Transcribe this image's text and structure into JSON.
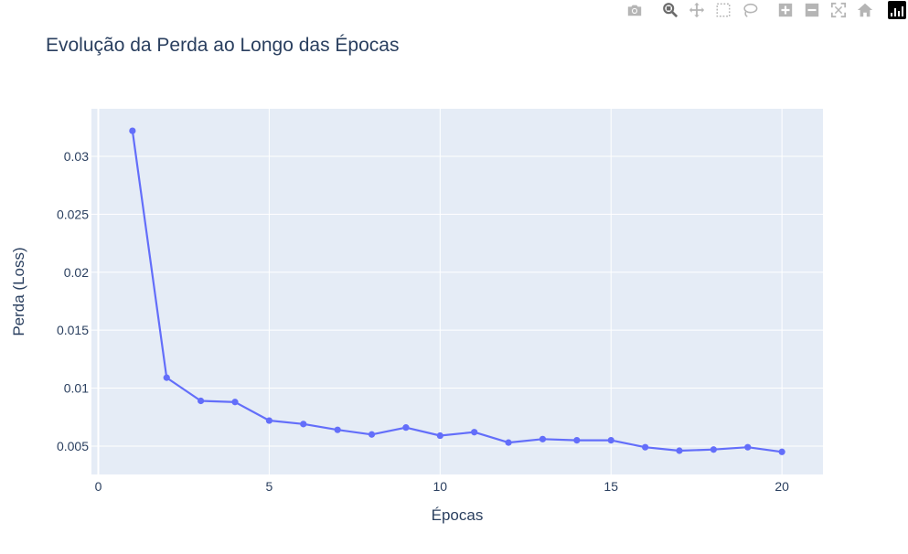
{
  "modebar": {
    "buttons": [
      "camera-icon",
      "zoom-icon",
      "pan-icon",
      "box-select-icon",
      "lasso-select-icon",
      "zoom-in-icon",
      "zoom-out-icon",
      "autoscale-icon",
      "reset-axes-icon",
      "plotly-logo-icon"
    ],
    "active": "zoom-icon"
  },
  "chart_data": {
    "type": "line",
    "title": "Evolução da Perda ao Longo das Épocas",
    "xlabel": "Épocas",
    "ylabel": "Perda (Loss)",
    "x": [
      1,
      2,
      3,
      4,
      5,
      6,
      7,
      8,
      9,
      10,
      11,
      12,
      13,
      14,
      15,
      16,
      17,
      18,
      19,
      20
    ],
    "series": [
      {
        "values": [
          0.0322,
          0.0109,
          0.0089,
          0.0088,
          0.0072,
          0.0069,
          0.0064,
          0.006,
          0.0066,
          0.0059,
          0.0062,
          0.0053,
          0.0056,
          0.0055,
          0.0055,
          0.0049,
          0.0046,
          0.0047,
          0.0049,
          0.0045
        ],
        "color": "#636efa",
        "mode": "lines+markers"
      }
    ],
    "xlim": [
      -0.2,
      21.2
    ],
    "ylim": [
      0.00255,
      0.0341
    ],
    "xticks": [
      0,
      5,
      10,
      15,
      20
    ],
    "xtick_labels": [
      "0",
      "5",
      "10",
      "15",
      "20"
    ],
    "yticks": [
      0.005,
      0.01,
      0.015,
      0.02,
      0.025,
      0.03
    ],
    "ytick_labels": [
      "0.005",
      "0.01",
      "0.015",
      "0.02",
      "0.025",
      "0.03"
    ],
    "grid": true,
    "plot_bgcolor": "#e5ecf6",
    "gridcolor": "#ffffff"
  }
}
